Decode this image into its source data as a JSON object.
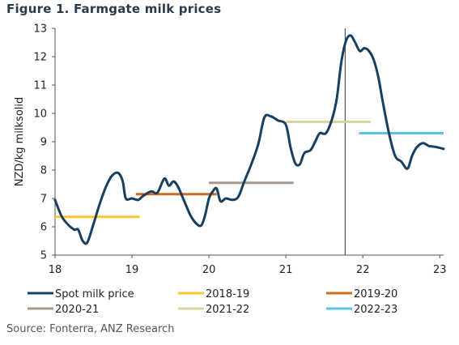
{
  "title": "Figure 1. Farmgate milk prices",
  "source": "Source: Fonterra, ANZ Research",
  "chart_data": {
    "type": "line",
    "ylabel": "NZD/kg  milksolid",
    "xlim": [
      18,
      23.05
    ],
    "ylim": [
      5,
      13
    ],
    "x_ticks": [
      "18",
      "19",
      "20",
      "21",
      "22",
      "23"
    ],
    "y_ticks": [
      "5",
      "6",
      "7",
      "8",
      "9",
      "10",
      "11",
      "12",
      "13"
    ],
    "vertical_line_x": 21.77,
    "series": [
      {
        "name": "Spot milk price",
        "color": "#173f5f",
        "style": "line",
        "points": [
          [
            18.0,
            6.95
          ],
          [
            18.08,
            6.4
          ],
          [
            18.16,
            6.1
          ],
          [
            18.25,
            5.9
          ],
          [
            18.3,
            5.9
          ],
          [
            18.36,
            5.5
          ],
          [
            18.42,
            5.45
          ],
          [
            18.5,
            6.1
          ],
          [
            18.58,
            6.8
          ],
          [
            18.66,
            7.4
          ],
          [
            18.74,
            7.8
          ],
          [
            18.82,
            7.9
          ],
          [
            18.88,
            7.6
          ],
          [
            18.92,
            7.0
          ],
          [
            19.0,
            7.0
          ],
          [
            19.08,
            6.95
          ],
          [
            19.15,
            7.1
          ],
          [
            19.25,
            7.25
          ],
          [
            19.33,
            7.2
          ],
          [
            19.42,
            7.7
          ],
          [
            19.48,
            7.45
          ],
          [
            19.54,
            7.6
          ],
          [
            19.6,
            7.4
          ],
          [
            19.68,
            6.9
          ],
          [
            19.76,
            6.4
          ],
          [
            19.84,
            6.1
          ],
          [
            19.9,
            6.05
          ],
          [
            19.95,
            6.4
          ],
          [
            20.0,
            7.0
          ],
          [
            20.05,
            7.25
          ],
          [
            20.1,
            7.35
          ],
          [
            20.15,
            6.9
          ],
          [
            20.22,
            7.0
          ],
          [
            20.3,
            6.95
          ],
          [
            20.38,
            7.05
          ],
          [
            20.46,
            7.6
          ],
          [
            20.55,
            8.2
          ],
          [
            20.64,
            8.9
          ],
          [
            20.72,
            9.85
          ],
          [
            20.8,
            9.9
          ],
          [
            20.9,
            9.75
          ],
          [
            21.0,
            9.6
          ],
          [
            21.06,
            8.8
          ],
          [
            21.12,
            8.25
          ],
          [
            21.18,
            8.2
          ],
          [
            21.24,
            8.6
          ],
          [
            21.32,
            8.7
          ],
          [
            21.38,
            9.0
          ],
          [
            21.44,
            9.3
          ],
          [
            21.52,
            9.3
          ],
          [
            21.6,
            9.8
          ],
          [
            21.66,
            10.5
          ],
          [
            21.72,
            11.8
          ],
          [
            21.78,
            12.55
          ],
          [
            21.84,
            12.75
          ],
          [
            21.9,
            12.5
          ],
          [
            21.96,
            12.2
          ],
          [
            22.02,
            12.3
          ],
          [
            22.08,
            12.2
          ],
          [
            22.14,
            11.9
          ],
          [
            22.2,
            11.3
          ],
          [
            22.26,
            10.4
          ],
          [
            22.34,
            9.3
          ],
          [
            22.42,
            8.5
          ],
          [
            22.5,
            8.3
          ],
          [
            22.58,
            8.05
          ],
          [
            22.64,
            8.5
          ],
          [
            22.7,
            8.8
          ],
          [
            22.78,
            8.95
          ],
          [
            22.86,
            8.85
          ],
          [
            22.94,
            8.82
          ],
          [
            23.05,
            8.75
          ]
        ]
      },
      {
        "name": "2018-19",
        "color": "#ffc72c",
        "style": "flat",
        "x": [
          18.0,
          19.1
        ],
        "value": 6.35
      },
      {
        "name": "2019-20",
        "color": "#d2691e",
        "style": "flat",
        "x": [
          19.05,
          20.1
        ],
        "value": 7.15
      },
      {
        "name": "2020-21",
        "color": "#a8998e",
        "style": "flat",
        "x": [
          20.0,
          21.1
        ],
        "value": 7.55
      },
      {
        "name": "2021-22",
        "color": "#d9d3a0",
        "style": "flat",
        "x": [
          21.0,
          22.1
        ],
        "value": 9.7
      },
      {
        "name": "2022-23",
        "color": "#5bc0eb",
        "style": "flat",
        "x": [
          21.95,
          23.05
        ],
        "value": 9.3
      }
    ]
  }
}
